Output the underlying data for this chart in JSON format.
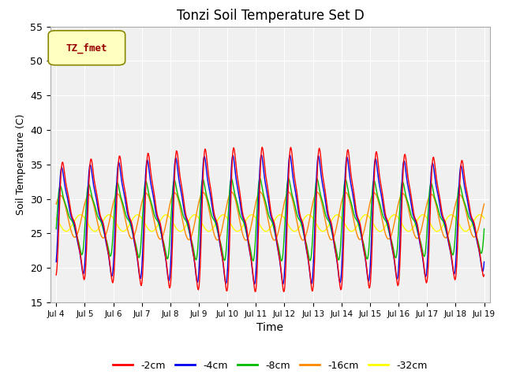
{
  "title": "Tonzi Soil Temperature Set D",
  "xlabel": "Time",
  "ylabel": "Soil Temperature (C)",
  "ylim": [
    15,
    55
  ],
  "start_day": 4,
  "end_day": 19,
  "legend_label": "TZ_fmet",
  "series_colors": {
    "-2cm": "#FF0000",
    "-4cm": "#0000EE",
    "-8cm": "#00BB00",
    "-16cm": "#FF8800",
    "-32cm": "#FFFF00"
  },
  "background_color": "#ebebeb",
  "plot_bg_color": "#f0f0f0",
  "grid_color": "#ffffff",
  "yticks": [
    15,
    20,
    25,
    30,
    35,
    40,
    45,
    50,
    55
  ]
}
